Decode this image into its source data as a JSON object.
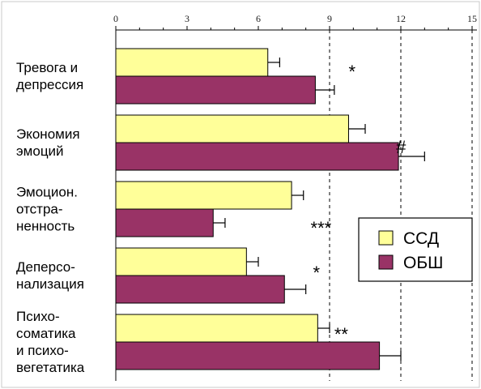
{
  "chart_data": {
    "type": "bar",
    "orientation": "horizontal",
    "xlim": [
      0,
      15
    ],
    "ticks": [
      "0",
      "3",
      "6",
      "9",
      "12",
      "15"
    ],
    "grid": "dashed vertical at 9, 12, 15",
    "legend_position": "right",
    "categories": [
      [
        "Тревога и",
        "депрессия"
      ],
      [
        "Экономия",
        "эмоций"
      ],
      [
        "Эмоцион.",
        "отстра-",
        "ненность"
      ],
      [
        "Деперсо-",
        "нализация"
      ],
      [
        "Психо-",
        "соматика",
        "и психо-",
        "вегетатика"
      ]
    ],
    "series": [
      {
        "name": "ССД",
        "color": "#ffff99",
        "values": [
          6.4,
          9.8,
          7.4,
          5.5,
          8.5
        ],
        "errors": [
          0.5,
          0.7,
          0.5,
          0.5,
          0.5
        ]
      },
      {
        "name": "ОБШ",
        "color": "#993366",
        "values": [
          8.4,
          11.9,
          4.1,
          7.1,
          11.1
        ],
        "errors": [
          0.8,
          1.1,
          0.5,
          0.9,
          0.9
        ]
      }
    ],
    "annotations": [
      "*",
      "#",
      "***",
      "*",
      "**"
    ]
  }
}
